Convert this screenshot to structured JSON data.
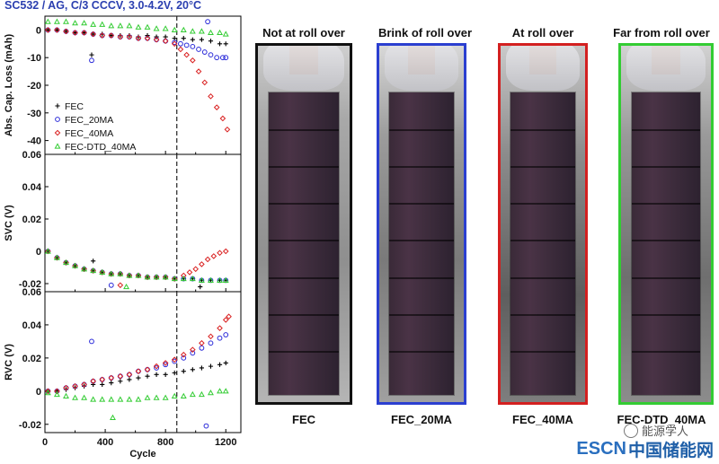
{
  "figure_title": "SC532 / AG, C/3 CCCV, 3.0-4.2V, 20°C",
  "chart_data": [
    {
      "type": "scatter",
      "panel": "top",
      "ylabel": "Abs. Cap. Loss (mAh)",
      "xlabel": "",
      "ylim": [
        -45,
        5
      ],
      "yticks": [
        0,
        -10,
        -20,
        -30,
        -40
      ],
      "xlim": [
        0,
        1300
      ],
      "vline_x": 875,
      "legend_position": "left-lower",
      "series": [
        {
          "name": "FEC",
          "marker": "plus",
          "color": "#000000",
          "x": [
            20,
            80,
            140,
            200,
            260,
            320,
            380,
            440,
            500,
            560,
            620,
            680,
            740,
            800,
            860,
            920,
            980,
            1040,
            1100,
            1160,
            1200
          ],
          "y": [
            0,
            0,
            -0.5,
            -1,
            -1,
            -1.5,
            -1.5,
            -2,
            -2,
            -2,
            -2.5,
            -2,
            -2.5,
            -2.5,
            -3,
            -3,
            -3.5,
            -3.5,
            -4,
            -5,
            -5
          ]
        },
        {
          "name": "FEC_20MA",
          "marker": "circle",
          "color": "#2b2bd9",
          "x": [
            20,
            80,
            140,
            200,
            260,
            320,
            380,
            440,
            500,
            560,
            620,
            680,
            740,
            800,
            860,
            900,
            940,
            980,
            1020,
            1060,
            1100,
            1140,
            1180,
            1200
          ],
          "y": [
            0,
            0,
            -0.5,
            -1,
            -1,
            -1.5,
            -2,
            -2,
            -2.5,
            -2.5,
            -3,
            -3,
            -3.5,
            -4,
            -4.5,
            -5,
            -5.5,
            -6,
            -7,
            -8,
            -9,
            -10,
            -10,
            -10
          ]
        },
        {
          "name": "FEC_40MA",
          "marker": "diamond",
          "color": "#d92020",
          "x": [
            20,
            80,
            140,
            200,
            260,
            320,
            380,
            440,
            500,
            560,
            620,
            680,
            740,
            800,
            860,
            900,
            940,
            980,
            1020,
            1060,
            1100,
            1140,
            1180,
            1210
          ],
          "y": [
            0,
            0,
            -0.5,
            -1,
            -1,
            -1.5,
            -2,
            -2,
            -2.5,
            -2.5,
            -3,
            -3,
            -3.5,
            -4,
            -5,
            -7,
            -9,
            -11,
            -15,
            -19,
            -24,
            -28,
            -32,
            -36
          ]
        },
        {
          "name": "FEC-DTD_40MA",
          "marker": "triangle",
          "color": "#33cc33",
          "x": [
            20,
            80,
            140,
            200,
            260,
            320,
            380,
            440,
            500,
            560,
            620,
            680,
            740,
            800,
            860,
            920,
            980,
            1040,
            1100,
            1160,
            1200
          ],
          "y": [
            3,
            3,
            3,
            2.5,
            2.5,
            2,
            2,
            1.5,
            1.5,
            1.5,
            1,
            1,
            0.5,
            0.5,
            0,
            0,
            -0.5,
            -0.5,
            -1,
            -1,
            -1.5
          ]
        }
      ],
      "outliers": [
        {
          "series": "FEC",
          "x": 310,
          "y": -9
        },
        {
          "series": "FEC_20MA",
          "x": 310,
          "y": -11
        },
        {
          "series": "FEC_20MA",
          "x": 1080,
          "y": 3
        }
      ]
    },
    {
      "type": "scatter",
      "panel": "middle",
      "ylabel": "SVC (V)",
      "xlabel": "",
      "ylim": [
        -0.025,
        0.06
      ],
      "yticks": [
        0.06,
        0.04,
        0.02,
        0,
        -0.02
      ],
      "xlim": [
        0,
        1300
      ],
      "vline_x": 875,
      "series": [
        {
          "name": "FEC",
          "color": "#000000",
          "x": [
            20,
            80,
            140,
            200,
            260,
            320,
            380,
            440,
            500,
            560,
            620,
            680,
            740,
            800,
            860,
            920,
            980,
            1040,
            1100,
            1160,
            1200
          ],
          "y": [
            0,
            -0.004,
            -0.007,
            -0.009,
            -0.011,
            -0.012,
            -0.013,
            -0.014,
            -0.014,
            -0.015,
            -0.015,
            -0.016,
            -0.016,
            -0.016,
            -0.017,
            -0.017,
            -0.017,
            -0.018,
            -0.018,
            -0.018,
            -0.018
          ]
        },
        {
          "name": "FEC_20MA",
          "color": "#2b2bd9",
          "x": [
            20,
            80,
            140,
            200,
            260,
            320,
            380,
            440,
            500,
            560,
            620,
            680,
            740,
            800,
            860,
            920,
            980,
            1040,
            1100,
            1160,
            1200
          ],
          "y": [
            0,
            -0.004,
            -0.007,
            -0.009,
            -0.011,
            -0.012,
            -0.013,
            -0.014,
            -0.014,
            -0.015,
            -0.015,
            -0.016,
            -0.016,
            -0.016,
            -0.017,
            -0.017,
            -0.017,
            -0.018,
            -0.018,
            -0.018,
            -0.018
          ]
        },
        {
          "name": "FEC_40MA",
          "color": "#d92020",
          "x": [
            20,
            80,
            140,
            200,
            260,
            320,
            380,
            440,
            500,
            560,
            620,
            680,
            740,
            800,
            860,
            920,
            960,
            1000,
            1040,
            1080,
            1120,
            1160,
            1200
          ],
          "y": [
            0,
            -0.004,
            -0.007,
            -0.009,
            -0.011,
            -0.012,
            -0.013,
            -0.014,
            -0.014,
            -0.015,
            -0.015,
            -0.016,
            -0.016,
            -0.016,
            -0.017,
            -0.015,
            -0.013,
            -0.011,
            -0.008,
            -0.005,
            -0.003,
            -0.001,
            0
          ]
        },
        {
          "name": "FEC-DTD_40MA",
          "color": "#33cc33",
          "x": [
            20,
            80,
            140,
            200,
            260,
            320,
            380,
            440,
            500,
            560,
            620,
            680,
            740,
            800,
            860,
            920,
            980,
            1040,
            1100,
            1160,
            1200
          ],
          "y": [
            0,
            -0.004,
            -0.007,
            -0.009,
            -0.011,
            -0.012,
            -0.013,
            -0.014,
            -0.014,
            -0.015,
            -0.015,
            -0.016,
            -0.016,
            -0.016,
            -0.017,
            -0.017,
            -0.017,
            -0.018,
            -0.018,
            -0.018,
            -0.018
          ]
        }
      ],
      "outliers": [
        {
          "series": "FEC",
          "x": 320,
          "y": -0.006
        },
        {
          "series": "FEC_20MA",
          "x": 440,
          "y": -0.021
        },
        {
          "series": "FEC_40MA",
          "x": 500,
          "y": -0.021
        },
        {
          "series": "FEC-DTD_40MA",
          "x": 540,
          "y": -0.022
        },
        {
          "series": "FEC",
          "x": 1030,
          "y": -0.022
        }
      ]
    },
    {
      "type": "scatter",
      "panel": "bottom",
      "ylabel": "RVC (V)",
      "xlabel": "Cycle",
      "ylim": [
        -0.025,
        0.06
      ],
      "yticks": [
        0.06,
        0.04,
        0.02,
        0,
        -0.02
      ],
      "xlim": [
        0,
        1300
      ],
      "xticks": [
        0,
        400,
        800,
        1200
      ],
      "vline_x": 875,
      "series": [
        {
          "name": "FEC",
          "color": "#000000",
          "x": [
            20,
            80,
            140,
            200,
            260,
            320,
            380,
            440,
            500,
            560,
            620,
            680,
            740,
            800,
            860,
            920,
            980,
            1040,
            1100,
            1160,
            1200
          ],
          "y": [
            0,
            0,
            0.001,
            0.002,
            0.003,
            0.004,
            0.004,
            0.005,
            0.006,
            0.007,
            0.008,
            0.009,
            0.01,
            0.01,
            0.011,
            0.012,
            0.013,
            0.014,
            0.015,
            0.016,
            0.017
          ]
        },
        {
          "name": "FEC_20MA",
          "color": "#2b2bd9",
          "x": [
            20,
            80,
            140,
            200,
            260,
            320,
            380,
            440,
            500,
            560,
            620,
            680,
            740,
            800,
            860,
            920,
            980,
            1040,
            1100,
            1160,
            1200
          ],
          "y": [
            0,
            0,
            0.002,
            0.003,
            0.004,
            0.006,
            0.007,
            0.008,
            0.009,
            0.01,
            0.012,
            0.013,
            0.014,
            0.016,
            0.018,
            0.02,
            0.023,
            0.026,
            0.029,
            0.032,
            0.034
          ]
        },
        {
          "name": "FEC_40MA",
          "color": "#d92020",
          "x": [
            20,
            80,
            140,
            200,
            260,
            320,
            380,
            440,
            500,
            560,
            620,
            680,
            740,
            800,
            860,
            920,
            980,
            1040,
            1100,
            1160,
            1200,
            1220
          ],
          "y": [
            0,
            0,
            0.002,
            0.003,
            0.004,
            0.006,
            0.007,
            0.008,
            0.009,
            0.01,
            0.012,
            0.013,
            0.015,
            0.017,
            0.019,
            0.022,
            0.025,
            0.029,
            0.033,
            0.038,
            0.043,
            0.045
          ]
        },
        {
          "name": "FEC-DTD_40MA",
          "color": "#33cc33",
          "x": [
            20,
            80,
            140,
            200,
            260,
            320,
            380,
            440,
            500,
            560,
            620,
            680,
            740,
            800,
            860,
            920,
            980,
            1040,
            1100,
            1160,
            1200
          ],
          "y": [
            -0.001,
            -0.002,
            -0.003,
            -0.004,
            -0.004,
            -0.005,
            -0.005,
            -0.005,
            -0.005,
            -0.005,
            -0.005,
            -0.004,
            -0.004,
            -0.004,
            -0.003,
            -0.003,
            -0.002,
            -0.002,
            -0.001,
            0,
            0
          ]
        }
      ],
      "outliers": [
        {
          "series": "FEC_20MA",
          "x": 310,
          "y": 0.03
        },
        {
          "series": "FEC-DTD_40MA",
          "x": 450,
          "y": -0.016
        },
        {
          "series": "FEC_20MA",
          "x": 1070,
          "y": -0.021
        }
      ]
    }
  ],
  "photos": [
    {
      "title": "Not at roll over",
      "caption": "FEC",
      "frame_color": "#111111"
    },
    {
      "title": "Brink of roll over",
      "caption": "FEC_20MA",
      "frame_color": "#2b3fd0"
    },
    {
      "title": "At roll over",
      "caption": "FEC_40MA",
      "frame_color": "#d32020"
    },
    {
      "title": "Far from roll over",
      "caption": "FEC-DTD_40MA",
      "frame_color": "#33cc33"
    }
  ],
  "watermark": {
    "brand": "ESCN",
    "site": "中国储能网",
    "account": "能源学人"
  }
}
